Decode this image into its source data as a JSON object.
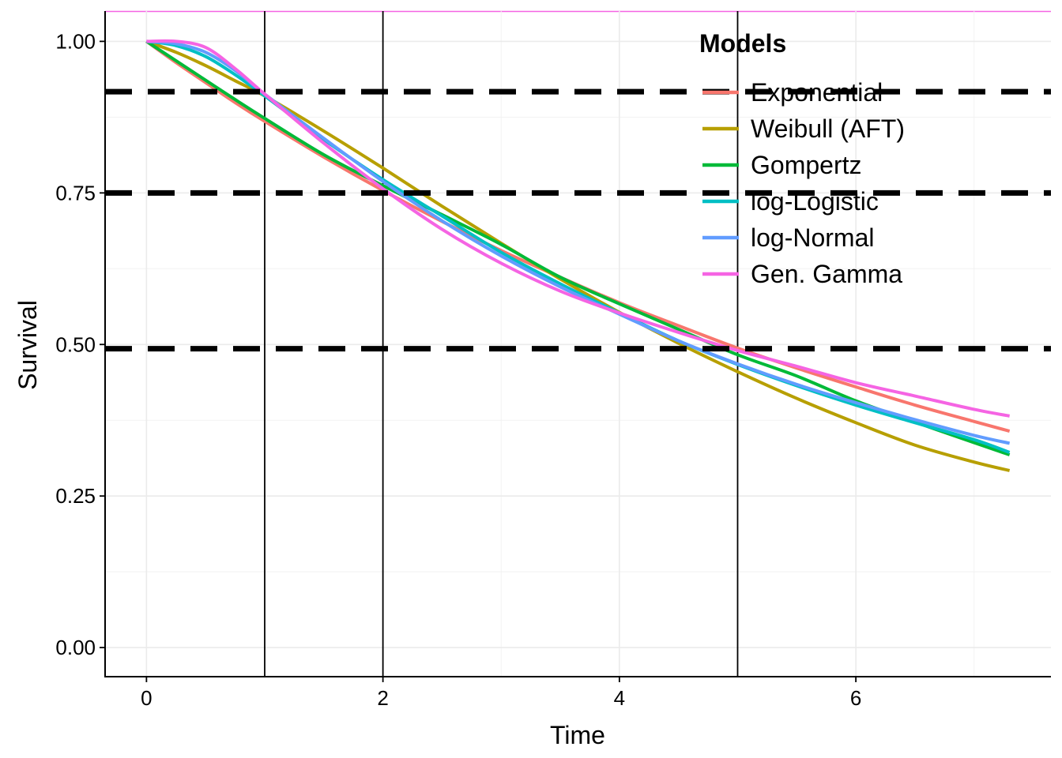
{
  "chart_data": {
    "type": "line",
    "title": "",
    "xlabel": "Time",
    "ylabel": "Survival",
    "xlim": [
      -0.35,
      7.65
    ],
    "ylim": [
      -0.048,
      1.05
    ],
    "xticks": [
      0,
      2,
      4,
      6
    ],
    "xtick_labels": [
      "0",
      "2",
      "4",
      "6"
    ],
    "yticks": [
      0,
      0.25,
      0.5,
      0.75,
      1.0
    ],
    "ytick_labels": [
      "0.00",
      "0.25",
      "0.50",
      "0.75",
      "1.00"
    ],
    "grid": true,
    "legend": {
      "title": "Models",
      "placement": "top-right"
    },
    "reference_lines": {
      "vertical_solid": [
        1,
        2,
        5
      ],
      "horizontal_dashed": [
        0.917,
        0.75,
        0.493
      ]
    },
    "x": [
      0,
      0.25,
      0.5,
      0.75,
      1,
      1.5,
      2,
      2.5,
      3,
      3.5,
      4,
      4.5,
      5,
      5.5,
      6,
      6.5,
      7,
      7.3
    ],
    "series": [
      {
        "name": "Exponential",
        "color": "#F8766D",
        "values": [
          1.0,
          0.965,
          0.932,
          0.899,
          0.868,
          0.809,
          0.754,
          0.703,
          0.655,
          0.611,
          0.569,
          0.531,
          0.494,
          0.461,
          0.43,
          0.4,
          0.373,
          0.357
        ]
      },
      {
        "name": "Weibull (AFT)",
        "color": "#B79F00",
        "values": [
          1.0,
          0.982,
          0.96,
          0.935,
          0.91,
          0.852,
          0.791,
          0.728,
          0.667,
          0.608,
          0.553,
          0.502,
          0.455,
          0.411,
          0.371,
          0.334,
          0.306,
          0.292
        ]
      },
      {
        "name": "Gompertz",
        "color": "#00BA38",
        "values": [
          1.0,
          0.968,
          0.936,
          0.904,
          0.873,
          0.813,
          0.762,
          0.714,
          0.665,
          0.611,
          0.567,
          0.525,
          0.483,
          0.448,
          0.407,
          0.372,
          0.338,
          0.318
        ]
      },
      {
        "name": "log-Logistic",
        "color": "#00BFC4",
        "values": [
          1.0,
          0.993,
          0.975,
          0.945,
          0.91,
          0.838,
          0.772,
          0.712,
          0.652,
          0.6,
          0.552,
          0.506,
          0.467,
          0.432,
          0.4,
          0.371,
          0.343,
          0.322
        ]
      },
      {
        "name": "log-Normal",
        "color": "#619CFF",
        "values": [
          1.0,
          0.996,
          0.982,
          0.952,
          0.913,
          0.84,
          0.769,
          0.704,
          0.646,
          0.595,
          0.55,
          0.506,
          0.468,
          0.434,
          0.404,
          0.376,
          0.35,
          0.337
        ]
      },
      {
        "name": "Gen. Gamma",
        "color": "#F564E3",
        "values": [
          1.0,
          1.0,
          0.99,
          0.955,
          0.913,
          0.832,
          0.757,
          0.69,
          0.634,
          0.588,
          0.552,
          0.52,
          0.49,
          0.464,
          0.437,
          0.415,
          0.393,
          0.382
        ]
      }
    ]
  }
}
